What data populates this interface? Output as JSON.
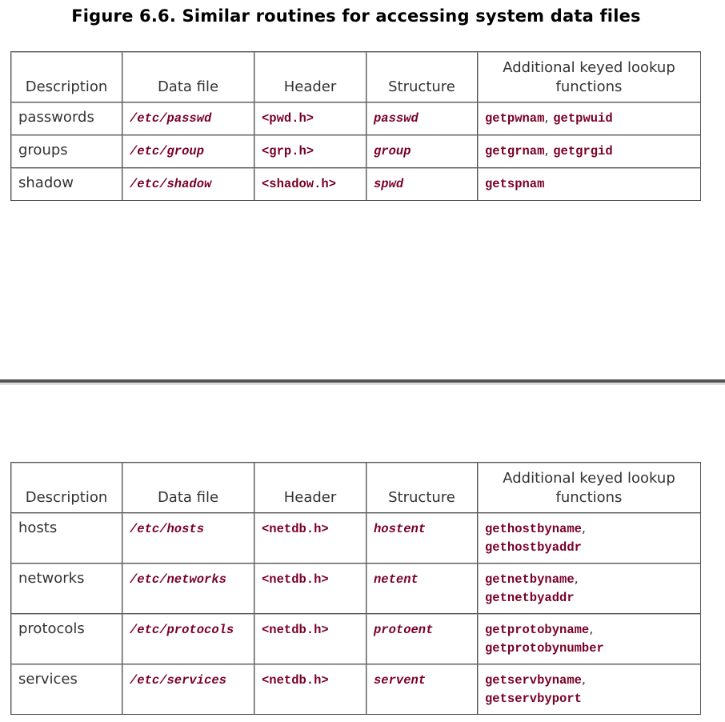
{
  "figure_title": "Figure 6.6. Similar routines for accessing system data files",
  "headers": {
    "description": "Description",
    "data_file": "Data file",
    "header": "Header",
    "structure": "Structure",
    "lookup": "Additional keyed lookup functions"
  },
  "table1": {
    "rows": [
      {
        "description": "passwords",
        "data_file": "/etc/passwd",
        "header": "<pwd.h>",
        "structure": "passwd",
        "fn1": "getpwnam",
        "sep": ",",
        "fn2": "getpwuid"
      },
      {
        "description": "groups",
        "data_file": "/etc/group",
        "header": "<grp.h>",
        "structure": "group",
        "fn1": "getgrnam",
        "sep": ",",
        "fn2": "getgrgid"
      },
      {
        "description": "shadow",
        "data_file": "/etc/shadow",
        "header": "<shadow.h>",
        "structure": "spwd",
        "fn1": "getspnam"
      }
    ]
  },
  "table2": {
    "rows": [
      {
        "description": "hosts",
        "data_file": "/etc/hosts",
        "header": "<netdb.h>",
        "structure": "hostent",
        "fn1": "gethostbyname",
        "sep": ",",
        "fn2": "gethostbyaddr"
      },
      {
        "description": "networks",
        "data_file": "/etc/networks",
        "header": "<netdb.h>",
        "structure": "netent",
        "fn1": "getnetbyname",
        "sep": ",",
        "fn2": "getnetbyaddr"
      },
      {
        "description": "protocols",
        "data_file": "/etc/protocols",
        "header": "<netdb.h>",
        "structure": "protoent",
        "fn1": "getprotobyname",
        "sep": ",",
        "fn2": "getprotobynumber"
      },
      {
        "description": "services",
        "data_file": "/etc/services",
        "header": "<netdb.h>",
        "structure": "servent",
        "fn1": "getservbyname",
        "sep": ",",
        "fn2": "getservbyport"
      }
    ]
  },
  "colors": {
    "code": "#7a0026",
    "text": "#333333",
    "border": "#555555"
  }
}
